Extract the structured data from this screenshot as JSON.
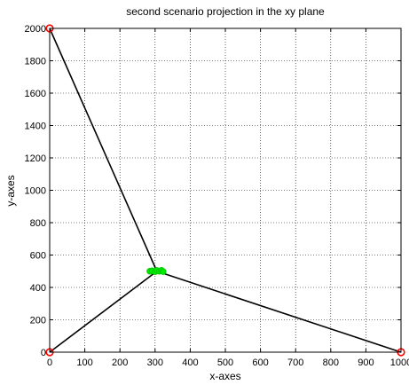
{
  "chart_data": {
    "type": "scatter",
    "title": "second scenario projection in the xy plane",
    "xlabel": "x-axes",
    "ylabel": "y-axes",
    "xlim": [
      0,
      1000
    ],
    "ylim": [
      0,
      2000
    ],
    "xticks": [
      0,
      100,
      200,
      300,
      400,
      500,
      600,
      700,
      800,
      900,
      1000
    ],
    "yticks": [
      0,
      200,
      400,
      600,
      800,
      1000,
      1200,
      1400,
      1600,
      1800,
      2000
    ],
    "grid": true,
    "anchors": [
      {
        "x": 0,
        "y": 2000
      },
      {
        "x": 0,
        "y": 0
      },
      {
        "x": 1000,
        "y": 0
      }
    ],
    "center_cluster": [
      {
        "x": 285,
        "y": 500
      },
      {
        "x": 292,
        "y": 503
      },
      {
        "x": 300,
        "y": 497
      },
      {
        "x": 305,
        "y": 505
      },
      {
        "x": 312,
        "y": 500
      },
      {
        "x": 318,
        "y": 506
      },
      {
        "x": 323,
        "y": 498
      }
    ],
    "lines": [
      {
        "from": [
          0,
          2000
        ],
        "to": [
          305,
          500
        ]
      },
      {
        "from": [
          0,
          0
        ],
        "to": [
          305,
          500
        ]
      },
      {
        "from": [
          1000,
          0
        ],
        "to": [
          305,
          500
        ]
      }
    ],
    "colors": {
      "anchor": "#ff0000",
      "cluster": "#00ee00",
      "line": "#000000",
      "grid": "#000000"
    }
  }
}
